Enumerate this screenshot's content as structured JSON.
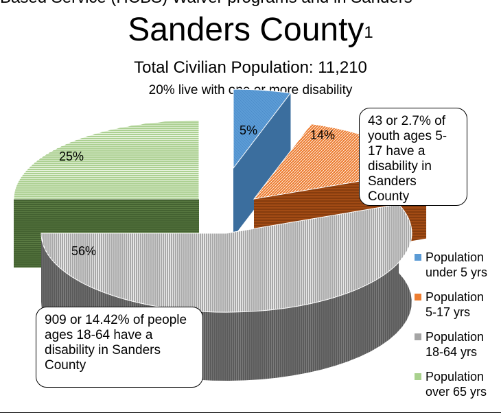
{
  "top_cut_text": "Based Service (HCBS) Waiver programs and in Sanders",
  "title": "Sanders County",
  "title_footnote": "1",
  "subtitle": "Total Civilian Population: 11,210",
  "note": "20% live with one or more disability",
  "callouts": {
    "youth": "43 or 2.7% of youth ages 5-17 have a disability in Sanders County",
    "adults": "909 or 14.42% of people ages 18-64 have a disability in Sanders County"
  },
  "colors": {
    "under5": "#5b9bd5",
    "age5_17": "#ed7d31",
    "age18_64": "#a5a5a5",
    "over65": "#a9d18e"
  },
  "chart_data": {
    "type": "pie",
    "title": "Sanders County",
    "subtitle": "Total Civilian Population: 11,210",
    "categories": [
      "Population under 5 yrs",
      "Population 5-17 yrs",
      "Population 18-64 yrs",
      "Population over 65 yrs"
    ],
    "values": [
      5,
      14,
      56,
      25
    ],
    "data_labels": [
      "5%",
      "14%",
      "56%",
      "25%"
    ],
    "style": "3d-exploded",
    "legend_position": "right"
  },
  "legend": [
    {
      "label": "Population\nunder 5 yrs",
      "color_key": "under5"
    },
    {
      "label": "Population\n5-17 yrs",
      "color_key": "age5_17"
    },
    {
      "label": "Population\n18-64 yrs",
      "color_key": "age18_64"
    },
    {
      "label": "Population\nover 65 yrs",
      "color_key": "over65"
    }
  ]
}
